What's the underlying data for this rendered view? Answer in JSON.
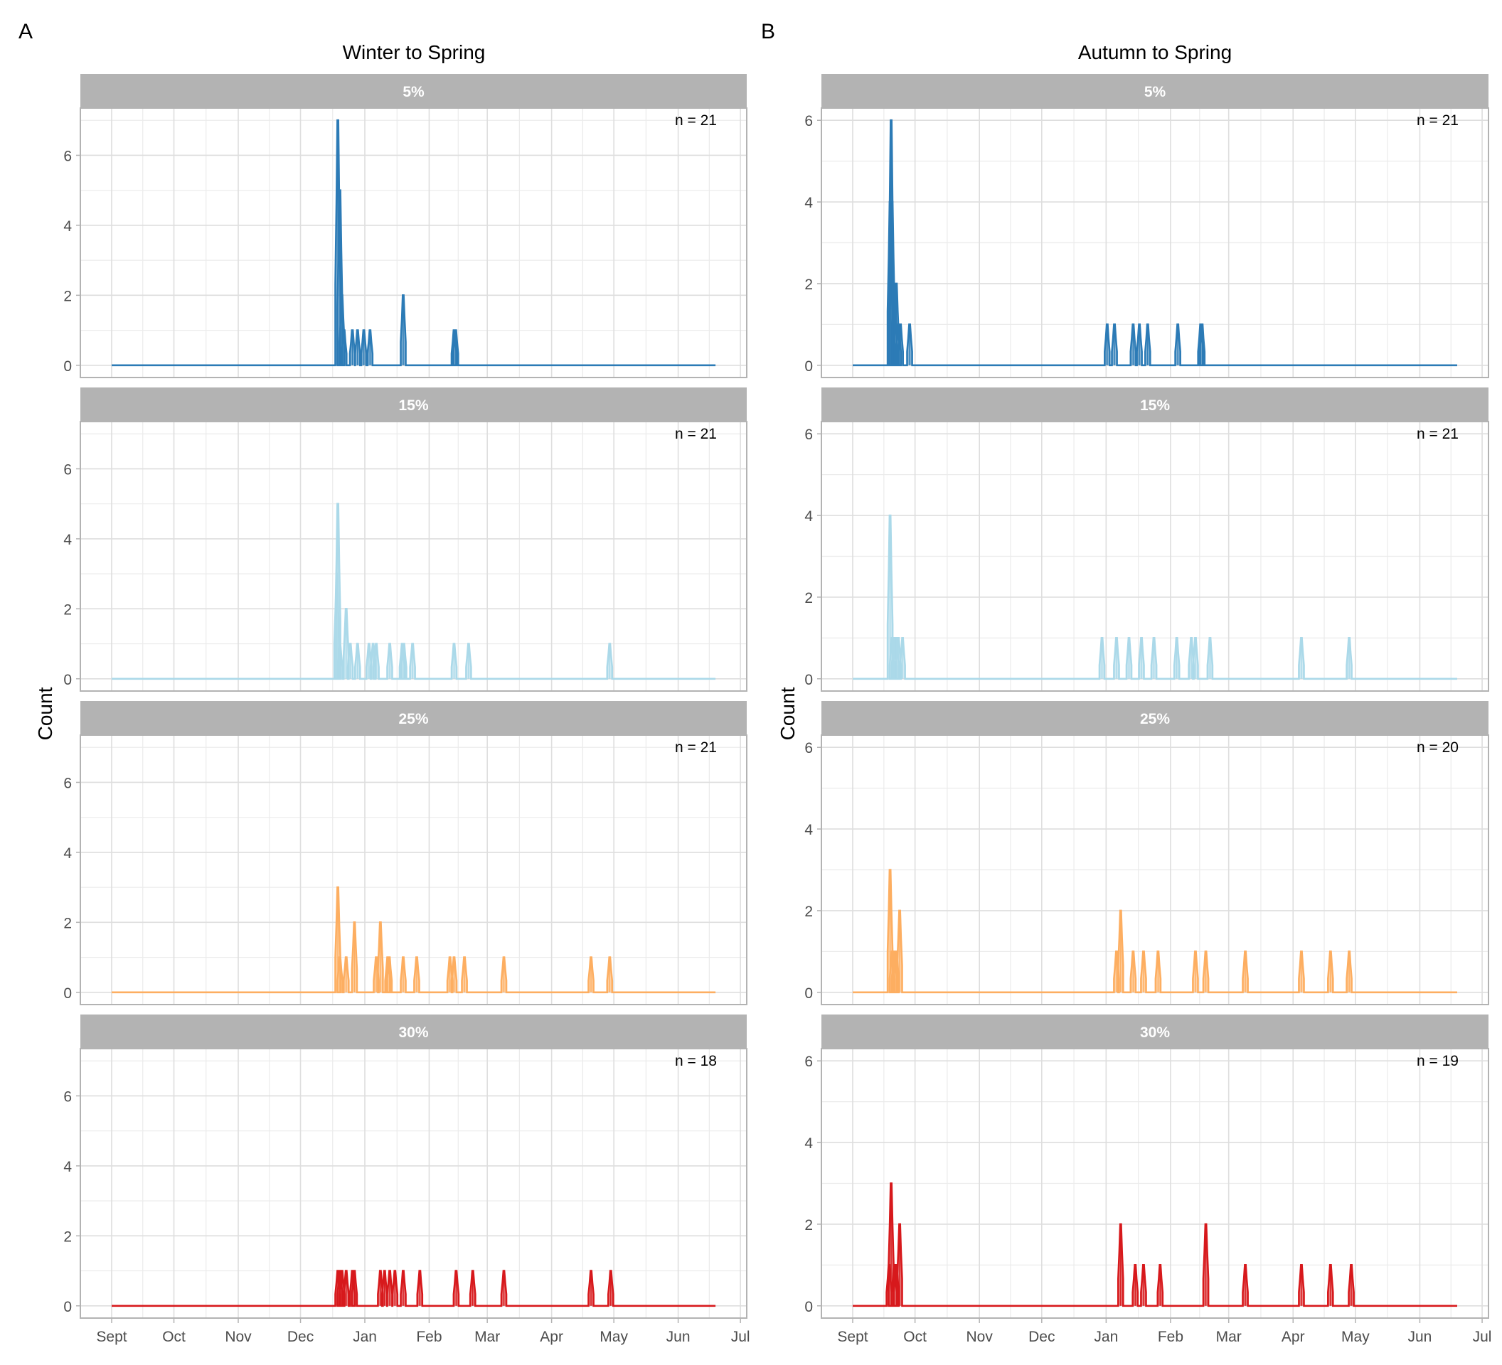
{
  "figure": {
    "panel_tags": [
      "A",
      "B"
    ],
    "colors": {
      "5%": "#2c7bb6",
      "15%": "#abd9e9",
      "25%": "#fdae61",
      "30%": "#d7191c"
    },
    "strip_color": "#b3b3b3",
    "strip_text_color": "#ffffff"
  },
  "chart_data": [
    {
      "type": "area",
      "title": "Winter to Spring",
      "tag": "A",
      "ylabel": "Count",
      "xlabel": "",
      "x_unit": "days since Sept 1",
      "x_range_days": [
        0,
        291
      ],
      "xlim_days": [
        -15,
        303
      ],
      "xtick_labels": [
        "Sept",
        "Oct",
        "Nov",
        "Dec",
        "Jan",
        "Feb",
        "Mar",
        "Apr",
        "May",
        "Jun",
        "Jul"
      ],
      "xtick_days": [
        0,
        30,
        61,
        91,
        122,
        153,
        181,
        212,
        242,
        273,
        303
      ],
      "ylim": [
        0,
        7
      ],
      "ytick_labels": [
        "0",
        "2",
        "4",
        "6"
      ],
      "grid": true,
      "facets": [
        {
          "label": "5%",
          "n_label": "n = 21",
          "peaks": [
            [
              109,
              7
            ],
            [
              110,
              5
            ],
            [
              111,
              2
            ],
            [
              112,
              1
            ],
            [
              116,
              1
            ],
            [
              118.5,
              1
            ],
            [
              121.5,
              1
            ],
            [
              124.5,
              1
            ],
            [
              140.5,
              2
            ],
            [
              165,
              1
            ],
            [
              165.8,
              1
            ]
          ]
        },
        {
          "label": "15%",
          "n_label": "n = 21",
          "peaks": [
            [
              108.5,
              3
            ],
            [
              109,
              5
            ],
            [
              110,
              1
            ],
            [
              113,
              2
            ],
            [
              115,
              1
            ],
            [
              118.5,
              1
            ],
            [
              124,
              1
            ],
            [
              126,
              1
            ],
            [
              127.5,
              1
            ],
            [
              134,
              1
            ],
            [
              140,
              1
            ],
            [
              140.8,
              1
            ],
            [
              145,
              1
            ],
            [
              165,
              1
            ],
            [
              172,
              1
            ],
            [
              240,
              1
            ]
          ]
        },
        {
          "label": "25%",
          "n_label": "n = 21",
          "peaks": [
            [
              109,
              3
            ],
            [
              110,
              1
            ],
            [
              113,
              1
            ],
            [
              117,
              2
            ],
            [
              127.5,
              1
            ],
            [
              129.5,
              2
            ],
            [
              133,
              1
            ],
            [
              133.8,
              1
            ],
            [
              140.5,
              1
            ],
            [
              147,
              1
            ],
            [
              163,
              1
            ],
            [
              165,
              1
            ],
            [
              170,
              1
            ],
            [
              189,
              1
            ],
            [
              231,
              1
            ],
            [
              240,
              1
            ]
          ]
        },
        {
          "label": "30%",
          "n_label": "n = 18",
          "peaks": [
            [
              109,
              1
            ],
            [
              110,
              1
            ],
            [
              111,
              1
            ],
            [
              113,
              1
            ],
            [
              116,
              1
            ],
            [
              117,
              1
            ],
            [
              129.5,
              1
            ],
            [
              131.5,
              1
            ],
            [
              134,
              1
            ],
            [
              136.5,
              1
            ],
            [
              140.5,
              1
            ],
            [
              148.5,
              1
            ],
            [
              166,
              1
            ],
            [
              174,
              1
            ],
            [
              189,
              1
            ],
            [
              231,
              1
            ],
            [
              240.5,
              1
            ]
          ]
        }
      ]
    },
    {
      "type": "area",
      "title": "Autumn to Spring",
      "tag": "B",
      "ylabel": "Count",
      "xlabel": "",
      "x_unit": "days since Sept 1",
      "x_range_days": [
        0,
        291
      ],
      "xlim_days": [
        -15,
        303
      ],
      "xtick_labels": [
        "Sept",
        "Oct",
        "Nov",
        "Dec",
        "Jan",
        "Feb",
        "Mar",
        "Apr",
        "May",
        "Jun",
        "Jul"
      ],
      "xtick_days": [
        0,
        30,
        61,
        91,
        122,
        153,
        181,
        212,
        242,
        273,
        303
      ],
      "ylim": [
        0,
        6
      ],
      "ytick_labels": [
        "0",
        "2",
        "4",
        "6"
      ],
      "grid": true,
      "facets": [
        {
          "label": "5%",
          "n_label": "n = 21",
          "peaks": [
            [
              18,
              4
            ],
            [
              18.5,
              6
            ],
            [
              19,
              4
            ],
            [
              20,
              2
            ],
            [
              21,
              2
            ],
            [
              22,
              1
            ],
            [
              23,
              1
            ],
            [
              27.4,
              1
            ],
            [
              122.5,
              1
            ],
            [
              126,
              1
            ],
            [
              135,
              1
            ],
            [
              138,
              1
            ],
            [
              142,
              1
            ],
            [
              156.5,
              1
            ],
            [
              167.5,
              1
            ],
            [
              168.2,
              1
            ]
          ]
        },
        {
          "label": "15%",
          "n_label": "n = 21",
          "peaks": [
            [
              18,
              4
            ],
            [
              19,
              1
            ],
            [
              20,
              1
            ],
            [
              21,
              1
            ],
            [
              22,
              1
            ],
            [
              24,
              1
            ],
            [
              120,
              1
            ],
            [
              127,
              1
            ],
            [
              133,
              1
            ],
            [
              139,
              1
            ],
            [
              145,
              1
            ],
            [
              156,
              1
            ],
            [
              163,
              1
            ],
            [
              165,
              1
            ],
            [
              172,
              1
            ],
            [
              216,
              1
            ],
            [
              239,
              1
            ]
          ]
        },
        {
          "label": "25%",
          "n_label": "n = 20",
          "peaks": [
            [
              18,
              3
            ],
            [
              19,
              1
            ],
            [
              20,
              1
            ],
            [
              21,
              1
            ],
            [
              22.6,
              2
            ],
            [
              127,
              1
            ],
            [
              129,
              2
            ],
            [
              135,
              1
            ],
            [
              140,
              1
            ],
            [
              147,
              1
            ],
            [
              165,
              1
            ],
            [
              170,
              1
            ],
            [
              189,
              1
            ],
            [
              216,
              1
            ],
            [
              230,
              1
            ],
            [
              239,
              1
            ]
          ]
        },
        {
          "label": "30%",
          "n_label": "n = 19",
          "peaks": [
            [
              17.5,
              1
            ],
            [
              18.5,
              3
            ],
            [
              20,
              1
            ],
            [
              21,
              1
            ],
            [
              22.6,
              2
            ],
            [
              129,
              2
            ],
            [
              136,
              1
            ],
            [
              140,
              1
            ],
            [
              148,
              1
            ],
            [
              170,
              2
            ],
            [
              189,
              1
            ],
            [
              216,
              1
            ],
            [
              230,
              1
            ],
            [
              240,
              1
            ]
          ]
        }
      ]
    }
  ]
}
